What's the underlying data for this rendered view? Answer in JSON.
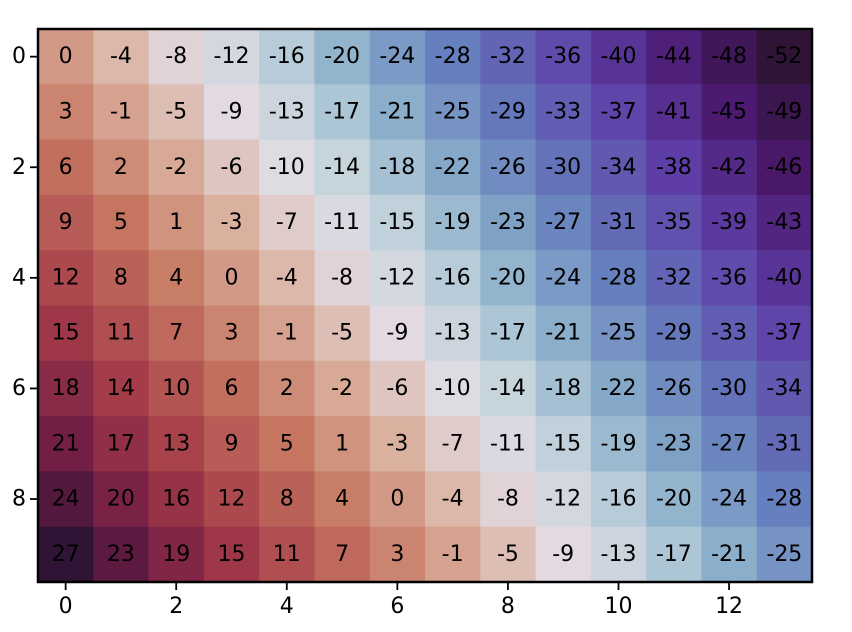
{
  "chart_data": {
    "type": "heatmap",
    "title": "",
    "xlabel": "",
    "ylabel": "",
    "colormap": "twilight_shifted",
    "value_range": [
      -52,
      27
    ],
    "rows": 10,
    "cols": 14,
    "xticks": [
      0,
      2,
      4,
      6,
      8,
      10,
      12
    ],
    "yticks": [
      0,
      2,
      4,
      6,
      8
    ],
    "values": [
      [
        0,
        -4,
        -8,
        -12,
        -16,
        -20,
        -24,
        -28,
        -32,
        -36,
        -40,
        -44,
        -48,
        -52
      ],
      [
        3,
        -1,
        -5,
        -9,
        -13,
        -17,
        -21,
        -25,
        -29,
        -33,
        -37,
        -41,
        -45,
        -49
      ],
      [
        6,
        2,
        -2,
        -6,
        -10,
        -14,
        -18,
        -22,
        -26,
        -30,
        -34,
        -38,
        -42,
        -46
      ],
      [
        9,
        5,
        1,
        -3,
        -7,
        -11,
        -15,
        -19,
        -23,
        -27,
        -31,
        -35,
        -39,
        -43
      ],
      [
        12,
        8,
        4,
        0,
        -4,
        -8,
        -12,
        -16,
        -20,
        -24,
        -28,
        -32,
        -36,
        -40
      ],
      [
        15,
        11,
        7,
        3,
        -1,
        -5,
        -9,
        -13,
        -17,
        -21,
        -25,
        -29,
        -33,
        -37
      ],
      [
        18,
        14,
        10,
        6,
        2,
        -2,
        -6,
        -10,
        -14,
        -18,
        -22,
        -26,
        -30,
        -34
      ],
      [
        21,
        17,
        13,
        9,
        5,
        1,
        -3,
        -7,
        -11,
        -15,
        -19,
        -23,
        -27,
        -31
      ],
      [
        24,
        20,
        16,
        12,
        8,
        4,
        0,
        -4,
        -8,
        -12,
        -16,
        -20,
        -24,
        -28
      ],
      [
        27,
        23,
        19,
        15,
        11,
        7,
        3,
        -1,
        -5,
        -9,
        -13,
        -17,
        -21,
        -25
      ]
    ]
  }
}
